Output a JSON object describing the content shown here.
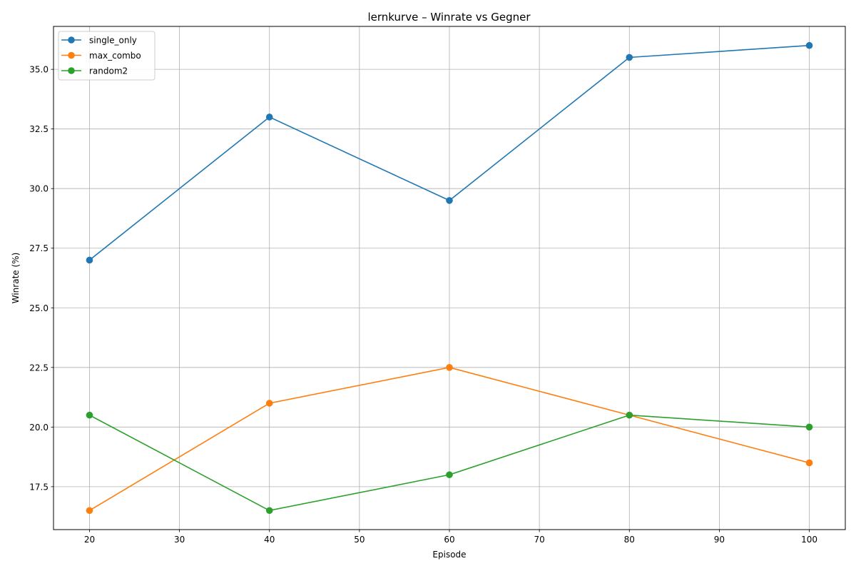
{
  "chart_data": {
    "type": "line",
    "title": "lernkurve – Winrate vs Gegner",
    "xlabel": "Episode",
    "ylabel": "Winrate (%)",
    "x": [
      20,
      40,
      60,
      80,
      100
    ],
    "xlim": [
      16,
      104
    ],
    "ylim": [
      15.7,
      36.8
    ],
    "xticks": [
      20,
      30,
      40,
      50,
      60,
      70,
      80,
      90,
      100
    ],
    "yticks": [
      17.5,
      20.0,
      22.5,
      25.0,
      27.5,
      30.0,
      32.5,
      35.0
    ],
    "ytick_labels": [
      "17.5",
      "20.0",
      "22.5",
      "25.0",
      "27.5",
      "30.0",
      "32.5",
      "35.0"
    ],
    "grid": true,
    "legend": "top-left",
    "series": [
      {
        "name": "single_only",
        "color": "#1f77b4",
        "values": [
          27.0,
          33.0,
          29.5,
          35.5,
          36.0
        ]
      },
      {
        "name": "max_combo",
        "color": "#ff7f0e",
        "values": [
          16.5,
          21.0,
          22.5,
          20.5,
          18.5
        ]
      },
      {
        "name": "random2",
        "color": "#2ca02c",
        "values": [
          20.5,
          16.5,
          18.0,
          20.5,
          20.0
        ]
      }
    ]
  }
}
